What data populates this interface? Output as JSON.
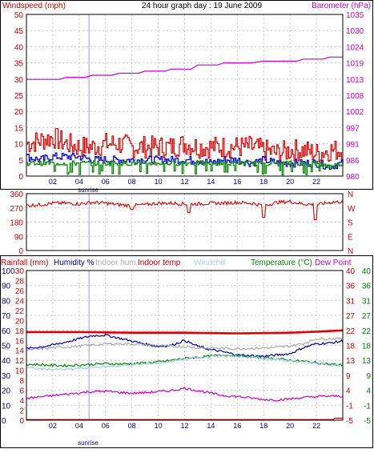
{
  "colors": {
    "frame": "#000000",
    "grid": "#c8c8c8",
    "wind_axis": "#cc0000",
    "baro_axis": "#cc00cc",
    "temp_axis": "#008000",
    "humidity_axis": "#000080",
    "rain_axis": "#cc0000",
    "sunrise_line": "#9999cc"
  },
  "sunrise_label": "sunrise",
  "chart_data": [
    {
      "type": "line",
      "title": "24 hour graph day : 19 June 2009",
      "left_axis_label": "Windspeed (mph)",
      "right_axis_label": "Barometer (hPa)",
      "left_ylim": [
        0,
        50
      ],
      "left_ticks": [
        "0",
        "5",
        "10",
        "15",
        "20",
        "25",
        "30",
        "35",
        "40",
        "45",
        "50"
      ],
      "right_ylim": [
        980,
        1035
      ],
      "right_ticks": [
        "980",
        "986",
        "991",
        "997",
        "1002",
        "1008",
        "1013",
        "1019",
        "1024",
        "1030",
        "1035"
      ],
      "xlim": [
        0,
        24
      ],
      "x_ticks": [
        "02",
        "04",
        "06",
        "08",
        "10",
        "12",
        "14",
        "16",
        "18",
        "20",
        "22"
      ],
      "sunrise_hour": 4.75,
      "grid": true,
      "series": [
        {
          "key": "gust",
          "axis": "left",
          "color": "#dd0000",
          "style": "noisy",
          "x": [
            0,
            1,
            2,
            3,
            4,
            5,
            6,
            7,
            8,
            9,
            10,
            11,
            12,
            13,
            14,
            15,
            16,
            17,
            18,
            19,
            20,
            21,
            22,
            23,
            24
          ],
          "y": [
            10,
            11,
            12,
            10,
            9,
            9,
            10,
            10,
            9,
            9,
            9,
            9,
            10,
            9,
            9,
            9,
            9,
            9,
            8,
            7,
            8,
            8,
            7,
            8,
            8
          ]
        },
        {
          "key": "average",
          "axis": "left",
          "color": "#0000cc",
          "style": "noisy",
          "x": [
            0,
            1,
            2,
            3,
            4,
            5,
            6,
            7,
            8,
            9,
            10,
            11,
            12,
            13,
            14,
            15,
            16,
            17,
            18,
            19,
            20,
            21,
            22,
            23,
            24
          ],
          "y": [
            6,
            5,
            6,
            6,
            6,
            5,
            5,
            5,
            5,
            5,
            5,
            5,
            5,
            5,
            4,
            5,
            5,
            4,
            5,
            4,
            4,
            4,
            4,
            3,
            4
          ]
        },
        {
          "key": "wind",
          "axis": "left",
          "color": "#008800",
          "style": "drops",
          "x": [
            0,
            1,
            2,
            3,
            4,
            5,
            6,
            7,
            8,
            9,
            10,
            11,
            12,
            13,
            14,
            15,
            16,
            17,
            18,
            19,
            20,
            21,
            22,
            23,
            24
          ],
          "y": [
            4,
            4,
            4,
            4,
            4,
            4,
            4,
            4,
            4,
            4,
            4,
            4,
            4,
            4,
            4,
            4,
            4,
            4,
            4,
            4,
            4,
            4,
            4,
            3,
            4
          ]
        },
        {
          "key": "barometer",
          "axis": "right",
          "color": "#cc00cc",
          "style": "step",
          "x": [
            0,
            2.5,
            3,
            4.5,
            5,
            6.5,
            7,
            8.5,
            9,
            10.5,
            11,
            12.5,
            13,
            14.5,
            15,
            17,
            18,
            20.5,
            21,
            22.5,
            23,
            24
          ],
          "y": [
            1012.9,
            1012.9,
            1013.6,
            1013.6,
            1014.3,
            1014.3,
            1015,
            1015,
            1015.7,
            1015.7,
            1016.4,
            1016.4,
            1017.8,
            1017.8,
            1018.5,
            1018.5,
            1019.1,
            1019.1,
            1019.8,
            1019.8,
            1020.5,
            1020.5
          ]
        }
      ]
    },
    {
      "type": "line",
      "title": "",
      "left_axis_label": "",
      "right_axis_label": "",
      "left_ylim": [
        0,
        360
      ],
      "left_ticks": [
        "0",
        "90",
        "180",
        "270",
        "360"
      ],
      "right_ticks": [
        "N",
        "E",
        "S",
        "W",
        "N"
      ],
      "xlim": [
        0,
        24
      ],
      "x_ticks": [
        "02",
        "04",
        "06",
        "08",
        "10",
        "12",
        "14",
        "16",
        "18",
        "20",
        "22"
      ],
      "grid": true,
      "series": [
        {
          "key": "direction",
          "axis": "left",
          "color": "#dd0000",
          "style": "noisy",
          "x": [
            0,
            1,
            2,
            3,
            4,
            5,
            6,
            7,
            8,
            9,
            10,
            11,
            12,
            13,
            14,
            15,
            16,
            17,
            18,
            19,
            20,
            21,
            22,
            23,
            24
          ],
          "y": [
            285,
            290,
            300,
            300,
            295,
            305,
            300,
            290,
            285,
            290,
            300,
            300,
            295,
            295,
            300,
            300,
            305,
            300,
            285,
            305,
            310,
            295,
            290,
            305,
            310
          ],
          "dips": [
            [
              8,
              260
            ],
            [
              12.3,
              240
            ],
            [
              18,
              210
            ],
            [
              21.9,
              195
            ]
          ]
        }
      ]
    },
    {
      "type": "line",
      "title": "",
      "legend": [
        "Rainfall (mm)",
        "Humidity %",
        "Indoor hum",
        "Indoor temp",
        "Windchill",
        "Temperature (°C)",
        "Dew Point"
      ],
      "rain_axis_label": "Rainfall (mm)",
      "rain_ticks": [
        "0",
        "2",
        "4",
        "6",
        "8",
        "10",
        "12",
        "14",
        "16",
        "18",
        "20",
        "22",
        "24",
        "26",
        "28",
        "30"
      ],
      "humidity_ticks": [
        "0",
        "10",
        "20",
        "30",
        "40",
        "50",
        "60",
        "70",
        "80",
        "90",
        "100"
      ],
      "temp_ticks_outer": [
        "-5",
        "-1",
        "4",
        "9",
        "13",
        "18",
        "22",
        "27",
        "31",
        "36",
        "40"
      ],
      "temp_ticks_inner": [
        "-5",
        "-1",
        "4",
        "9",
        "13",
        "18",
        "22",
        "27",
        "31",
        "36",
        "40"
      ],
      "temp_ylim": [
        -5,
        40
      ],
      "xlim": [
        0,
        24
      ],
      "x_ticks": [
        "02",
        "04",
        "06",
        "08",
        "10",
        "12",
        "14",
        "16",
        "18",
        "20",
        "22"
      ],
      "sunrise_hour": 4.75,
      "grid": true,
      "series": [
        {
          "key": "indoor_temp",
          "axis": "temp",
          "color": "#dd0000",
          "style": "thick",
          "x": [
            0,
            4,
            8,
            12,
            16,
            18,
            20,
            22,
            24
          ],
          "y": [
            21.5,
            21.5,
            21.3,
            21.3,
            21.1,
            21.2,
            21.3,
            21.6,
            22.0
          ]
        },
        {
          "key": "humidity",
          "axis": "temp",
          "color": "#0000aa",
          "style": "noisy",
          "x": [
            0,
            1,
            2,
            3,
            4,
            5,
            6,
            7,
            8,
            9,
            10,
            11,
            12,
            13,
            14,
            15,
            16,
            17,
            18,
            19,
            20,
            21,
            22,
            23,
            24
          ],
          "y": [
            16.5,
            17,
            17.6,
            18.5,
            19.5,
            20.4,
            20.6,
            19.7,
            18.8,
            17.9,
            17.2,
            17.5,
            19,
            17.2,
            16.2,
            15.5,
            14.6,
            14.4,
            14.2,
            14.6,
            15,
            16.8,
            18,
            18.2,
            18.8
          ]
        },
        {
          "key": "indoor_humidity",
          "axis": "temp",
          "color": "#aaaaaa",
          "style": "noisy",
          "x": [
            0,
            1,
            2,
            3,
            4,
            5,
            6,
            7,
            8,
            9,
            10,
            11,
            12,
            13,
            14,
            15,
            16,
            17,
            18,
            19,
            20,
            21,
            22,
            23,
            24
          ],
          "y": [
            16,
            16.4,
            16.8,
            17,
            17.3,
            17.6,
            17.9,
            18,
            17.9,
            17.7,
            17.5,
            17.2,
            17.1,
            16.8,
            16.7,
            16.6,
            16.5,
            16.6,
            16.7,
            16.9,
            17.3,
            18,
            19.5,
            19.5,
            19.5
          ]
        },
        {
          "key": "temperature",
          "axis": "temp",
          "color": "#008800",
          "style": "noisy",
          "x": [
            0,
            1,
            2,
            3,
            4,
            5,
            6,
            7,
            8,
            9,
            10,
            11,
            12,
            13,
            14,
            15,
            16,
            17,
            18,
            19,
            20,
            21,
            22,
            23,
            24
          ],
          "y": [
            11.8,
            11.7,
            11.5,
            11.4,
            11.6,
            11.8,
            12,
            11.9,
            12,
            12.2,
            12.5,
            13,
            13.6,
            13.9,
            14.3,
            14.6,
            14.4,
            14,
            13.8,
            13.5,
            13,
            12.7,
            12.3,
            11.8,
            11.6
          ]
        },
        {
          "key": "windchill",
          "axis": "temp",
          "color": "#aaccee",
          "style": "noisy",
          "x": [
            0,
            1,
            2,
            3,
            4,
            5,
            6,
            7,
            8,
            9,
            10,
            11,
            12,
            13,
            14,
            15,
            16,
            17,
            18,
            19,
            20,
            21,
            22,
            23,
            24
          ],
          "y": [
            10.8,
            10.4,
            10.3,
            10.2,
            10.6,
            10.9,
            11.1,
            11.3,
            11.6,
            11.9,
            12.2,
            12.7,
            13.3,
            13.8,
            14.1,
            14.5,
            14.3,
            13.9,
            13.6,
            13.3,
            12.8,
            12.5,
            12.1,
            11.7,
            11.5
          ]
        },
        {
          "key": "dew_point",
          "axis": "temp",
          "color": "#cc00cc",
          "style": "noisy",
          "x": [
            0,
            1,
            2,
            3,
            4,
            5,
            6,
            7,
            8,
            9,
            10,
            11,
            12,
            13,
            14,
            15,
            16,
            17,
            18,
            19,
            20,
            21,
            22,
            23,
            24
          ],
          "y": [
            1.6,
            2.0,
            2.4,
            2.8,
            3.2,
            3.6,
            3.7,
            3.4,
            3.1,
            3.3,
            3.6,
            3.9,
            4.6,
            3.9,
            3.1,
            2.4,
            2.1,
            1.7,
            1.2,
            1.1,
            1.4,
            1.8,
            2.1,
            2.2,
            2.2
          ]
        },
        {
          "key": "rainfall",
          "axis": "temp",
          "color": "#dd0000",
          "style": "step",
          "x": [
            0,
            23.3,
            23.4,
            24
          ],
          "y": [
            -4.8,
            -4.8,
            -4.4,
            -4.4
          ]
        }
      ]
    }
  ]
}
